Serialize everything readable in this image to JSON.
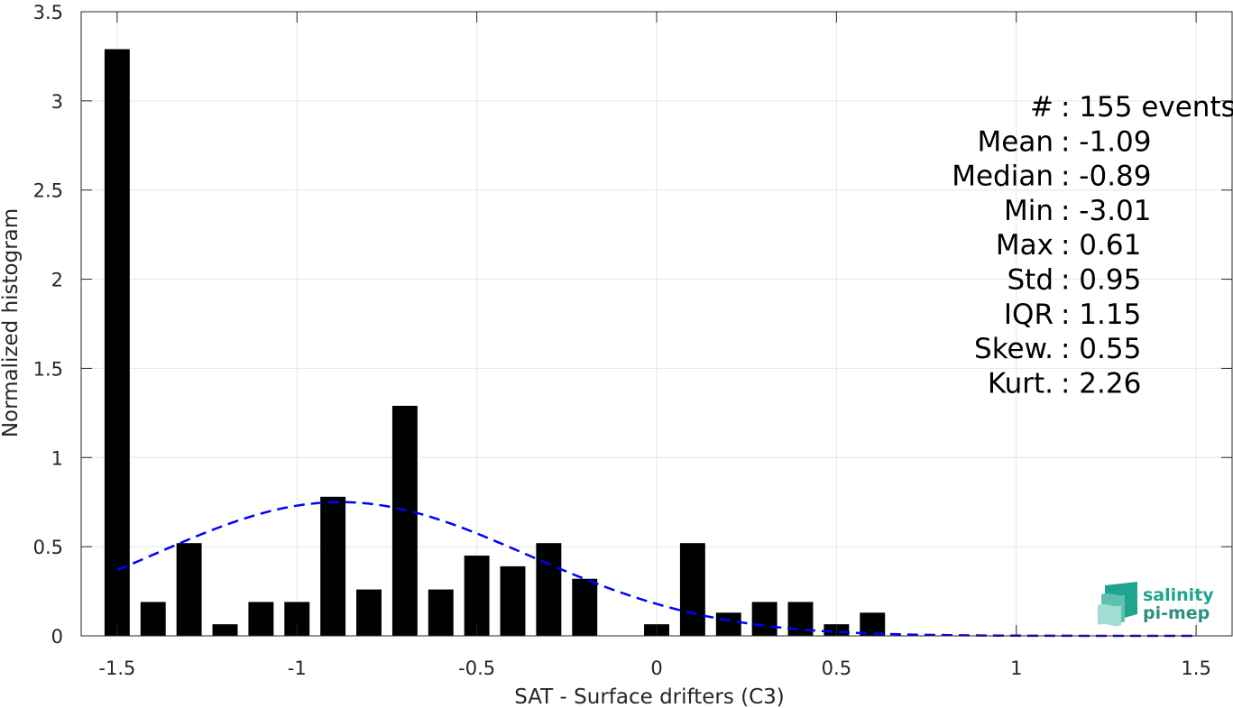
{
  "chart_data": {
    "type": "bar",
    "xlabel": "SAT - Surface drifters (C3)",
    "ylabel": "Normalized histogram",
    "xlim": [
      -1.6,
      1.6
    ],
    "ylim": [
      0,
      3.5
    ],
    "xticks": [
      -1.5,
      -1,
      -0.5,
      0,
      0.5,
      1,
      1.5
    ],
    "xtick_labels": [
      "-1.5",
      "-1",
      "-0.5",
      "0",
      "0.5",
      "1",
      "1.5"
    ],
    "yticks": [
      0,
      0.5,
      1,
      1.5,
      2,
      2.5,
      3,
      3.5
    ],
    "ytick_labels": [
      "0",
      "0.5",
      "1",
      "1.5",
      "2",
      "2.5",
      "3",
      "3.5"
    ],
    "grid": true,
    "bar_width": 0.07,
    "bars": [
      {
        "x": -1.5,
        "y": 3.29
      },
      {
        "x": -1.4,
        "y": 0.19
      },
      {
        "x": -1.3,
        "y": 0.52
      },
      {
        "x": -1.2,
        "y": 0.065
      },
      {
        "x": -1.1,
        "y": 0.19
      },
      {
        "x": -1.0,
        "y": 0.19
      },
      {
        "x": -0.9,
        "y": 0.78
      },
      {
        "x": -0.8,
        "y": 0.26
      },
      {
        "x": -0.7,
        "y": 1.29
      },
      {
        "x": -0.6,
        "y": 0.26
      },
      {
        "x": -0.5,
        "y": 0.45
      },
      {
        "x": -0.4,
        "y": 0.39
      },
      {
        "x": -0.3,
        "y": 0.52
      },
      {
        "x": -0.2,
        "y": 0.32
      },
      {
        "x": 0.0,
        "y": 0.065
      },
      {
        "x": 0.1,
        "y": 0.52
      },
      {
        "x": 0.2,
        "y": 0.13
      },
      {
        "x": 0.3,
        "y": 0.19
      },
      {
        "x": 0.4,
        "y": 0.19
      },
      {
        "x": 0.5,
        "y": 0.065
      },
      {
        "x": 0.6,
        "y": 0.13
      }
    ],
    "fit_curve": {
      "style": "dashed",
      "color": "#0000ff",
      "type": "normal",
      "x_range": [
        -1.5,
        1.5
      ],
      "peak_x": -0.88,
      "peak_y": 0.75,
      "sigma": 0.52
    },
    "bar_color": "#000000",
    "stats_lines": [
      "#  : 155 events",
      "Mean : -1.09",
      "Median : -0.89",
      "Min : -3.01",
      "Max : 0.61",
      "Std : 0.95",
      "IQR : 1.15",
      "Skew. : 0.55",
      "Kurt. : 2.26"
    ]
  },
  "logo": {
    "line1": "salinity",
    "line2": "pi-mep",
    "colors": [
      "#1fa58f",
      "#2f8f7f",
      "#7fd0c0"
    ]
  }
}
